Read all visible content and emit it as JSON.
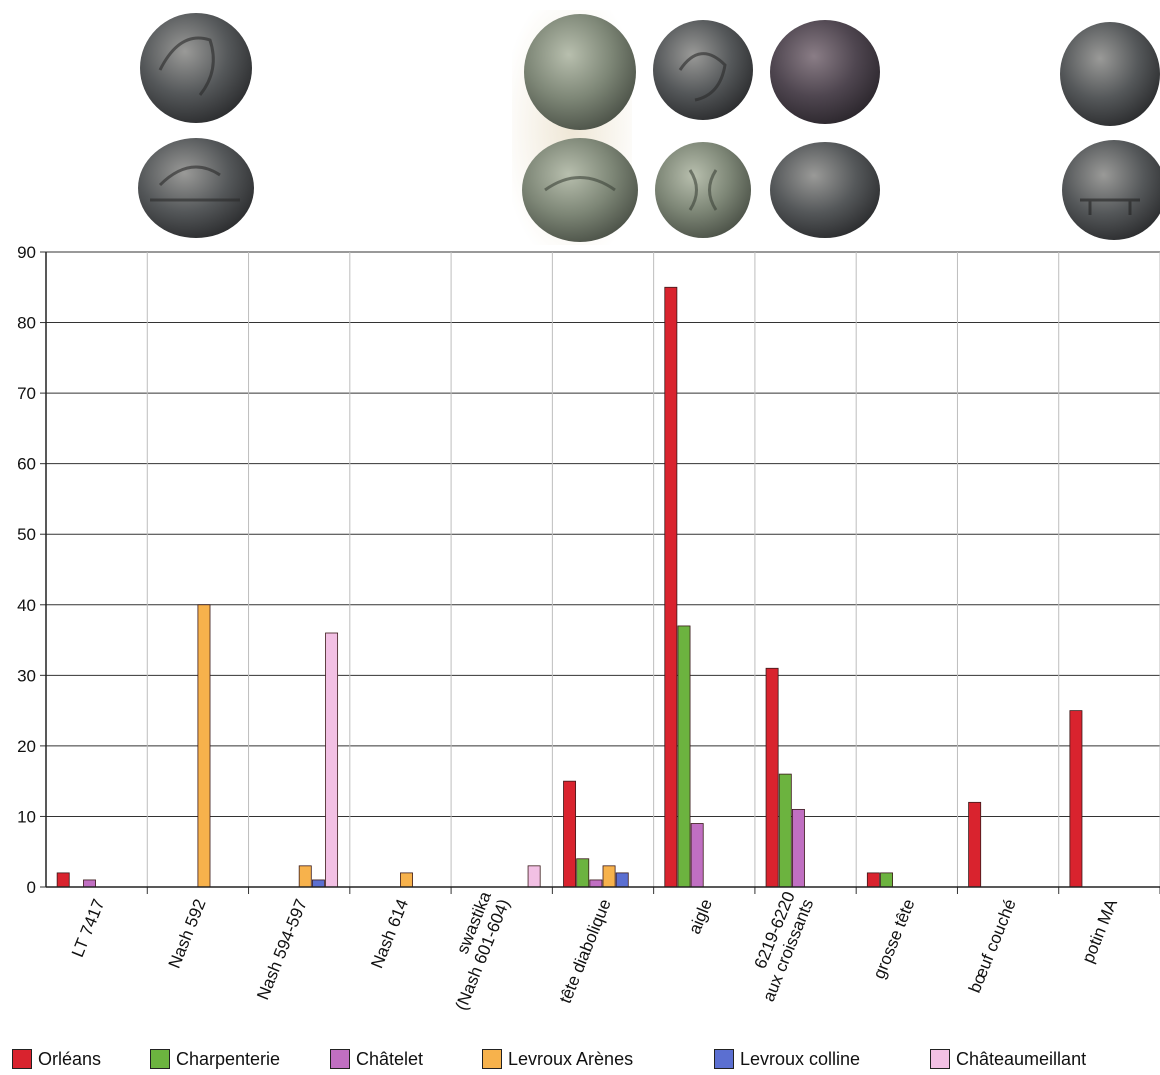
{
  "coin_images": [
    {
      "description_icon": "coin-photo",
      "group": "LT 7417"
    },
    {
      "description_icon": "coin-photo",
      "group": "tête diabolique"
    },
    {
      "description_icon": "coin-photo",
      "group": "aigle"
    },
    {
      "description_icon": "coin-photo",
      "group": "6219-6220 aux croissants"
    },
    {
      "description_icon": "coin-photo",
      "group": "potin MA"
    }
  ],
  "chart_data": {
    "type": "bar",
    "title": "",
    "xlabel": "",
    "ylabel": "",
    "ylim": [
      0,
      90
    ],
    "yticks": [
      0,
      10,
      20,
      30,
      40,
      50,
      60,
      70,
      80,
      90
    ],
    "grid": true,
    "legend_position": "bottom",
    "categories": [
      [
        "LT 7417"
      ],
      [
        "Nash 592"
      ],
      [
        "Nash 594-597"
      ],
      [
        "Nash 614"
      ],
      [
        "swastika",
        "(Nash 601-604)"
      ],
      [
        "tête diabolique"
      ],
      [
        "aigle"
      ],
      [
        "6219-6220",
        "aux croissants"
      ],
      [
        "grosse tête"
      ],
      [
        "bœuf couché"
      ],
      [
        "potin MA"
      ]
    ],
    "series": [
      {
        "name": "Orléans",
        "color": "#d9232e",
        "values": [
          2,
          0,
          0,
          0,
          0,
          15,
          85,
          31,
          2,
          12,
          25
        ]
      },
      {
        "name": "Charpenterie",
        "color": "#6cb33f",
        "values": [
          0,
          0,
          0,
          0,
          0,
          4,
          37,
          16,
          2,
          0,
          0
        ]
      },
      {
        "name": "Châtelet",
        "color": "#c06fc2",
        "values": [
          1,
          0,
          0,
          0,
          0,
          1,
          9,
          11,
          0,
          0,
          0
        ]
      },
      {
        "name": "Levroux Arènes",
        "color": "#f7b24c",
        "values": [
          0,
          40,
          3,
          2,
          0,
          3,
          0,
          0,
          0,
          0,
          0
        ]
      },
      {
        "name": "Levroux colline",
        "color": "#5b6fd1",
        "values": [
          0,
          0,
          1,
          0,
          0,
          2,
          0,
          0,
          0,
          0,
          0
        ]
      },
      {
        "name": "Châteaumeillant",
        "color": "#f2c0e4",
        "values": [
          0,
          0,
          36,
          0,
          3,
          0,
          0,
          0,
          0,
          0,
          0
        ]
      }
    ]
  }
}
